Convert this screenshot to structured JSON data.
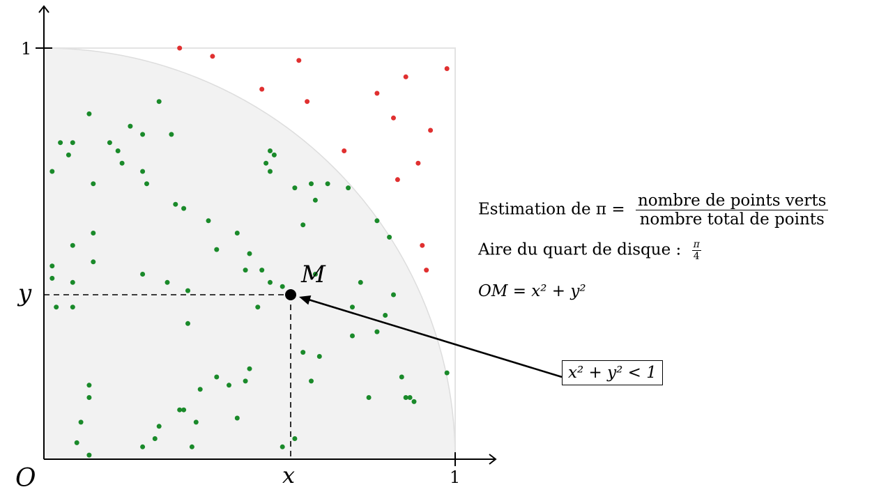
{
  "axes": {
    "origin_label": "O",
    "x_point_label": "x",
    "y_point_label": "y",
    "x_tick_label": "1",
    "y_tick_label": "1",
    "xlim": [
      0,
      1
    ],
    "ylim": [
      0,
      1
    ]
  },
  "point": {
    "label": "M",
    "x": 0.6,
    "y": 0.4
  },
  "annotations": {
    "estimation_prefix": "Estimation de π =",
    "estimation_numerator": "nombre de points verts",
    "estimation_denominator": "nombre total de points",
    "area_text": "Aire du quart de disque :",
    "area_num": "π",
    "area_den": "4",
    "om_text": "OM = x² + y²",
    "inequality": "x² + y² < 1"
  },
  "colors": {
    "inside": "#1a8a2a",
    "outside": "#e03030",
    "disk_fill": "#f2f2f2"
  },
  "chart_data": {
    "type": "scatter",
    "series": [
      {
        "name": "",
        "color": "#1a8a2a",
        "points": [
          [
            0.11,
            0.84
          ],
          [
            0.28,
            0.87
          ],
          [
            0.21,
            0.81
          ],
          [
            0.24,
            0.79
          ],
          [
            0.31,
            0.79
          ],
          [
            0.04,
            0.77
          ],
          [
            0.07,
            0.77
          ],
          [
            0.16,
            0.77
          ],
          [
            0.18,
            0.75
          ],
          [
            0.06,
            0.74
          ],
          [
            0.19,
            0.72
          ],
          [
            0.55,
            0.75
          ],
          [
            0.56,
            0.74
          ],
          [
            0.54,
            0.72
          ],
          [
            0.02,
            0.7
          ],
          [
            0.24,
            0.7
          ],
          [
            0.55,
            0.7
          ],
          [
            0.12,
            0.67
          ],
          [
            0.25,
            0.67
          ],
          [
            0.61,
            0.66
          ],
          [
            0.65,
            0.67
          ],
          [
            0.69,
            0.67
          ],
          [
            0.74,
            0.66
          ],
          [
            0.32,
            0.62
          ],
          [
            0.34,
            0.61
          ],
          [
            0.66,
            0.63
          ],
          [
            0.4,
            0.58
          ],
          [
            0.63,
            0.57
          ],
          [
            0.81,
            0.58
          ],
          [
            0.12,
            0.55
          ],
          [
            0.47,
            0.55
          ],
          [
            0.84,
            0.54
          ],
          [
            0.07,
            0.52
          ],
          [
            0.42,
            0.51
          ],
          [
            0.5,
            0.5
          ],
          [
            0.12,
            0.48
          ],
          [
            0.02,
            0.47
          ],
          [
            0.49,
            0.46
          ],
          [
            0.53,
            0.46
          ],
          [
            0.02,
            0.44
          ],
          [
            0.24,
            0.45
          ],
          [
            0.66,
            0.45
          ],
          [
            0.07,
            0.43
          ],
          [
            0.3,
            0.43
          ],
          [
            0.55,
            0.43
          ],
          [
            0.77,
            0.43
          ],
          [
            0.58,
            0.42
          ],
          [
            0.35,
            0.41
          ],
          [
            0.85,
            0.4
          ],
          [
            0.03,
            0.37
          ],
          [
            0.07,
            0.37
          ],
          [
            0.52,
            0.37
          ],
          [
            0.75,
            0.37
          ],
          [
            0.83,
            0.35
          ],
          [
            0.35,
            0.33
          ],
          [
            0.75,
            0.3
          ],
          [
            0.81,
            0.31
          ],
          [
            0.63,
            0.26
          ],
          [
            0.67,
            0.25
          ],
          [
            0.5,
            0.22
          ],
          [
            0.42,
            0.2
          ],
          [
            0.65,
            0.19
          ],
          [
            0.87,
            0.2
          ],
          [
            0.98,
            0.21
          ],
          [
            0.11,
            0.18
          ],
          [
            0.49,
            0.19
          ],
          [
            0.45,
            0.18
          ],
          [
            0.38,
            0.17
          ],
          [
            0.11,
            0.15
          ],
          [
            0.79,
            0.15
          ],
          [
            0.89,
            0.15
          ],
          [
            0.88,
            0.15
          ],
          [
            0.9,
            0.14
          ],
          [
            0.33,
            0.12
          ],
          [
            0.34,
            0.12
          ],
          [
            0.47,
            0.1
          ],
          [
            0.09,
            0.09
          ],
          [
            0.37,
            0.09
          ],
          [
            0.28,
            0.08
          ],
          [
            0.27,
            0.05
          ],
          [
            0.61,
            0.05
          ],
          [
            0.08,
            0.04
          ],
          [
            0.24,
            0.03
          ],
          [
            0.36,
            0.03
          ],
          [
            0.58,
            0.03
          ],
          [
            0.11,
            0.01
          ]
        ]
      },
      {
        "name": "",
        "color": "#e03030",
        "points": [
          [
            0.33,
            1.0
          ],
          [
            0.41,
            0.98
          ],
          [
            0.62,
            0.97
          ],
          [
            0.98,
            0.95
          ],
          [
            0.88,
            0.93
          ],
          [
            0.53,
            0.9
          ],
          [
            0.64,
            0.87
          ],
          [
            0.81,
            0.89
          ],
          [
            0.85,
            0.83
          ],
          [
            0.94,
            0.8
          ],
          [
            0.73,
            0.75
          ],
          [
            0.91,
            0.72
          ],
          [
            0.86,
            0.68
          ],
          [
            0.92,
            0.52
          ],
          [
            0.93,
            0.46
          ]
        ]
      }
    ]
  }
}
